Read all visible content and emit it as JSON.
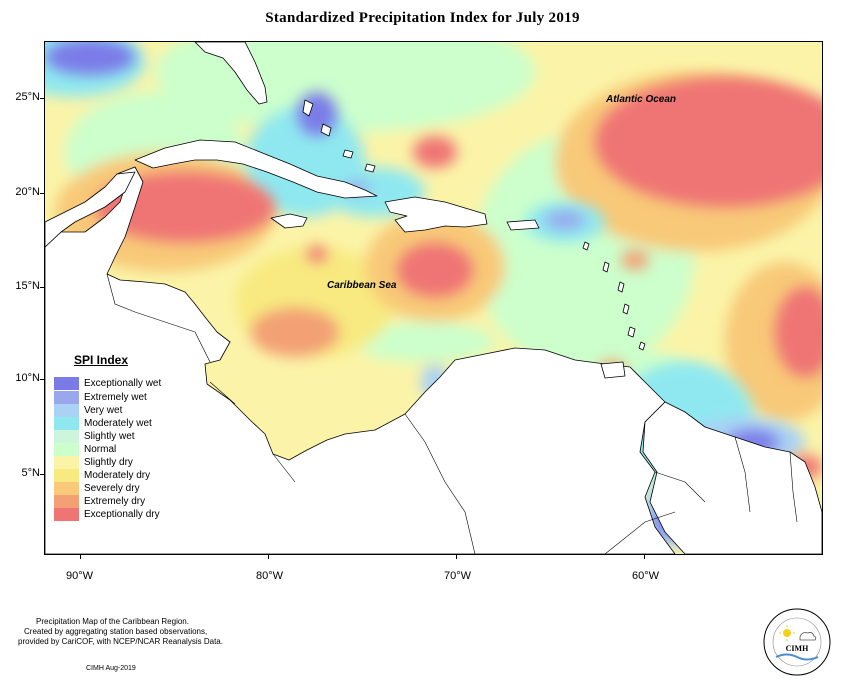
{
  "title": "Standardized Precipitation Index for July 2019",
  "axes": {
    "lat_labels": [
      "25°N",
      "20°N",
      "15°N",
      "10°N",
      "5°N"
    ],
    "lon_labels": [
      "90°W",
      "80°W",
      "70°W",
      "60°W"
    ]
  },
  "map_labels": {
    "atlantic": "Atlantic Ocean",
    "caribbean": "Caribbean Sea"
  },
  "legend": {
    "title": "SPI Index",
    "items": [
      {
        "label": "Exceptionally wet",
        "color": "#7b7be8"
      },
      {
        "label": "Extremely wet",
        "color": "#9aa6ee"
      },
      {
        "label": "Very wet",
        "color": "#a9d2f4"
      },
      {
        "label": "Moderately wet",
        "color": "#8fe8f0"
      },
      {
        "label": "Slightly wet",
        "color": "#ccf5dc"
      },
      {
        "label": "Normal",
        "color": "#ccffcc"
      },
      {
        "label": "Slightly dry",
        "color": "#fbf4a8"
      },
      {
        "label": "Moderately dry",
        "color": "#f8ea80"
      },
      {
        "label": "Severely dry",
        "color": "#f8c978"
      },
      {
        "label": "Extremely dry",
        "color": "#f3a074"
      },
      {
        "label": "Exceptionally dry",
        "color": "#ef7575"
      }
    ]
  },
  "footer": {
    "lines": [
      "Precipitation Map of the Caribbean Region.",
      "Created by aggregating station based observations,",
      "provided by CariCOF, with NCEP/NCAR Reanalysis Data."
    ],
    "credit": "CIMH Aug-2019",
    "logo_text": "CIMH"
  }
}
